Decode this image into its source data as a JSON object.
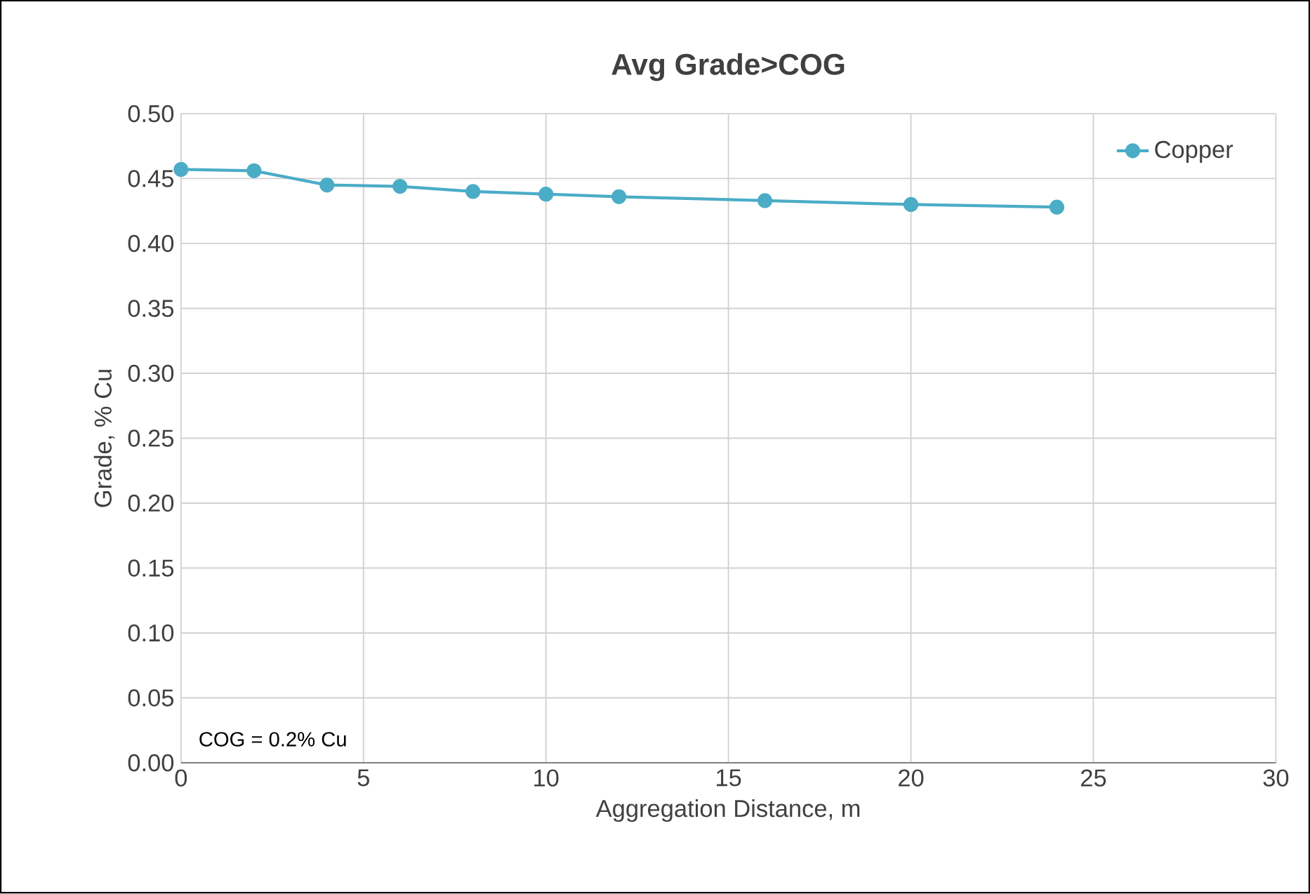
{
  "chart_data": {
    "type": "line",
    "title": "Avg Grade>COG",
    "xlabel": "Aggregation Distance, m",
    "ylabel": "Grade, % Cu",
    "annotations": [
      "COG = 0.2% Cu"
    ],
    "series": [
      {
        "name": "Copper",
        "color": "#4bacc6",
        "x": [
          0,
          2,
          4,
          6,
          8,
          10,
          12,
          16,
          20,
          24
        ],
        "values": [
          0.457,
          0.456,
          0.445,
          0.444,
          0.44,
          0.438,
          0.436,
          0.433,
          0.43,
          0.428
        ]
      }
    ],
    "xlim": [
      0,
      30
    ],
    "xticks": [
      0,
      5,
      10,
      15,
      20,
      25,
      30
    ],
    "ylim": [
      0,
      0.5
    ],
    "yticks": [
      {
        "value": 0,
        "label": "0.00"
      },
      {
        "value": 0.05,
        "label": "0.05"
      },
      {
        "value": 0.1,
        "label": "0.10"
      },
      {
        "value": 0.15,
        "label": "0.15"
      },
      {
        "value": 0.2,
        "label": "0.20"
      },
      {
        "value": 0.25,
        "label": "0.25"
      },
      {
        "value": 0.3,
        "label": "0.30"
      },
      {
        "value": 0.35,
        "label": "0.35"
      },
      {
        "value": 0.4,
        "label": "0.40"
      },
      {
        "value": 0.45,
        "label": "0.45"
      },
      {
        "value": 0.5,
        "label": "0.50"
      }
    ],
    "grid": true,
    "legend": "top right",
    "marker": "circle",
    "line_style": "solid"
  }
}
